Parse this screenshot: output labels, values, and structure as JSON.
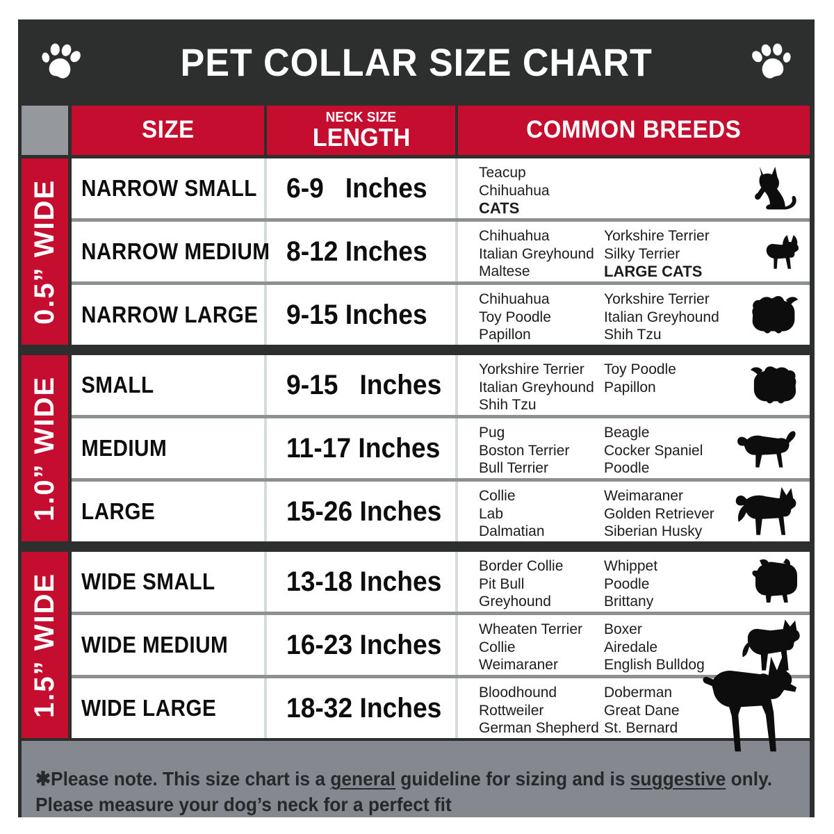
{
  "chart_data": {
    "type": "table",
    "title": "PET COLLAR SIZE CHART",
    "columns": [
      "SIZE",
      "NECK SIZE LENGTH",
      "COMMON BREEDS"
    ],
    "groups": [
      {
        "width_label": "0.5” WIDE",
        "rows": [
          {
            "size": "NARROW SMALL",
            "length": "6-9   Inches",
            "breeds1": [
              {
                "t": "Teacup"
              },
              {
                "t": "Chihuahua"
              },
              {
                "t": "CATS",
                "b": true
              }
            ],
            "breeds2": [],
            "icon": "cat-icon"
          },
          {
            "size": "NARROW MEDIUM",
            "length": "8-12 Inches",
            "breeds1": [
              {
                "t": "Chihuahua"
              },
              {
                "t": "Italian Greyhound"
              },
              {
                "t": "Maltese"
              }
            ],
            "breeds2": [
              {
                "t": "Yorkshire Terrier"
              },
              {
                "t": "Silky Terrier"
              },
              {
                "t": "LARGE CATS",
                "b": true
              }
            ],
            "icon": "chihuahua-icon"
          },
          {
            "size": "NARROW LARGE",
            "length": "9-15 Inches",
            "breeds1": [
              {
                "t": "Chihuahua"
              },
              {
                "t": "Toy Poodle"
              },
              {
                "t": "Papillon"
              }
            ],
            "breeds2": [
              {
                "t": "Yorkshire Terrier"
              },
              {
                "t": "Italian Greyhound"
              },
              {
                "t": "Shih Tzu"
              }
            ],
            "icon": "shih-tzu-icon"
          }
        ]
      },
      {
        "width_label": "1.0” WIDE",
        "rows": [
          {
            "size": "SMALL",
            "length": "9-15   Inches",
            "breeds1": [
              {
                "t": "Yorkshire Terrier"
              },
              {
                "t": "Italian Greyhound"
              },
              {
                "t": "Shih Tzu"
              }
            ],
            "breeds2": [
              {
                "t": "Toy Poodle"
              },
              {
                "t": "Papillon"
              }
            ],
            "icon": "pekingese-icon"
          },
          {
            "size": "MEDIUM",
            "length": "11-17 Inches",
            "breeds1": [
              {
                "t": "Pug"
              },
              {
                "t": "Boston Terrier"
              },
              {
                "t": "Bull Terrier"
              }
            ],
            "breeds2": [
              {
                "t": "Beagle"
              },
              {
                "t": "Cocker Spaniel"
              },
              {
                "t": "Poodle"
              }
            ],
            "icon": "beagle-icon"
          },
          {
            "size": "LARGE",
            "length": "15-26 Inches",
            "breeds1": [
              {
                "t": "Collie"
              },
              {
                "t": "Lab"
              },
              {
                "t": "Dalmatian"
              }
            ],
            "breeds2": [
              {
                "t": "Weimaraner"
              },
              {
                "t": "Golden Retriever"
              },
              {
                "t": "Siberian Husky"
              }
            ],
            "icon": "husky-icon"
          }
        ]
      },
      {
        "width_label": "1.5” WIDE",
        "rows": [
          {
            "size": "WIDE SMALL",
            "length": "13-18 Inches",
            "breeds1": [
              {
                "t": "Border Collie"
              },
              {
                "t": "Pit Bull"
              },
              {
                "t": "Greyhound"
              }
            ],
            "breeds2": [
              {
                "t": "Whippet"
              },
              {
                "t": "Poodle"
              },
              {
                "t": "Brittany"
              }
            ],
            "icon": "bulldog-icon"
          },
          {
            "size": "WIDE MEDIUM",
            "length": "16-23 Inches",
            "breeds1": [
              {
                "t": "Wheaten Terrier"
              },
              {
                "t": "Collie"
              },
              {
                "t": "Weimaraner"
              }
            ],
            "breeds2": [
              {
                "t": "Boxer"
              },
              {
                "t": "Airedale"
              },
              {
                "t": "English Bulldog"
              }
            ],
            "icon": "pit-bull-icon"
          },
          {
            "size": "WIDE LARGE",
            "length": "18-32 Inches",
            "breeds1": [
              {
                "t": "Bloodhound"
              },
              {
                "t": "Rottweiler"
              },
              {
                "t": "German Shepherd"
              }
            ],
            "breeds2": [
              {
                "t": "Doberman"
              },
              {
                "t": "Great Dane"
              },
              {
                "t": "St. Bernard"
              }
            ],
            "icon": "doberman-icon",
            "icon_overflow": true
          }
        ]
      }
    ]
  },
  "header_row": {
    "size": "SIZE",
    "neck_size": "NECK SIZE",
    "length": "LENGTH",
    "breeds": "COMMON BREEDS"
  },
  "header_icons": {
    "left": "paw-icon",
    "right": "paw-icon"
  },
  "footer": {
    "line1": [
      {
        "t": "✱Please note. This size chart is a "
      },
      {
        "t": "general",
        "u": true
      },
      {
        "t": " guideline for sizing and is "
      },
      {
        "t": "suggestive",
        "u": true
      },
      {
        "t": " only."
      }
    ],
    "line2": "Please measure your dog’s neck for a perfect fit"
  },
  "colors": {
    "charcoal": "#2d2f2e",
    "red": "#c50d2f",
    "corner_gray": "#95989d",
    "footer_gray": "#85888e",
    "row_separator_gray": "#8d9090",
    "column_divider_gray": "#d5dbdb",
    "row_white": "#ffffff",
    "text_black": "#0d0d0d"
  }
}
